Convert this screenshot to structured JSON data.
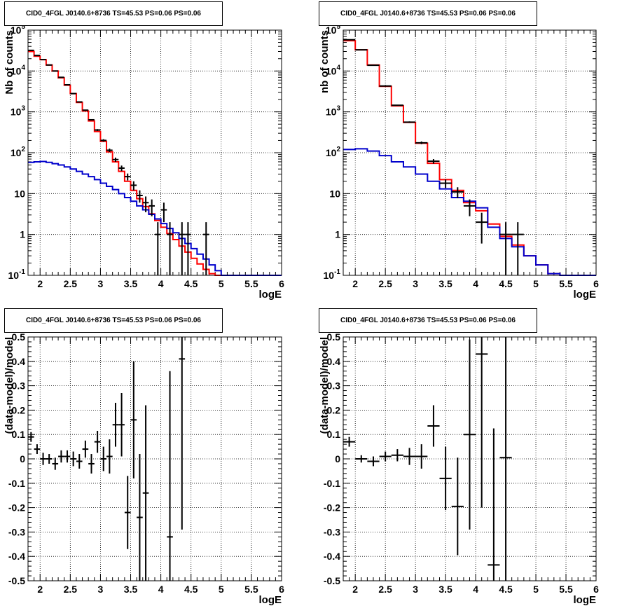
{
  "chart_data": [
    {
      "type": "line",
      "title": "CID0_4FGL J0140.6+8736 TS=45.53 PS=0.06 PS=0.06",
      "xlabel": "logE",
      "ylabel": "Nb of counts",
      "yscale": "log",
      "xlim": [
        1.8,
        6.0
      ],
      "ylim": [
        0.1,
        100000
      ],
      "grid": true,
      "x_ticks": [
        "2",
        "2.5",
        "3",
        "3.5",
        "4",
        "4.5",
        "5",
        "5.5",
        "6"
      ],
      "y_ticks": [
        "10^{-1}",
        "1",
        "10",
        "10^{2}",
        "10^{3}",
        "10^{4}",
        "10^{5}"
      ],
      "bin_edges": [
        1.8,
        1.9,
        2.0,
        2.1,
        2.2,
        2.3,
        2.4,
        2.5,
        2.6,
        2.7,
        2.8,
        2.9,
        3.0,
        3.1,
        3.2,
        3.3,
        3.4,
        3.5,
        3.6,
        3.7,
        3.8,
        3.9,
        4.0,
        4.1,
        4.2,
        4.3,
        4.4,
        4.5,
        4.6,
        4.7,
        4.8,
        4.9,
        5.0,
        5.1,
        5.2,
        5.3,
        5.4,
        5.5,
        5.6,
        5.7,
        5.8,
        5.9,
        6.0
      ],
      "series": [
        {
          "color": "#ff0000",
          "values": [
            30000,
            23000,
            19000,
            14000,
            10000,
            6800,
            4500,
            2800,
            1700,
            1050,
            600,
            330,
            190,
            105,
            60,
            35,
            20,
            12,
            7.5,
            4.8,
            3.2,
            2.2,
            1.5,
            1.05,
            0.75,
            0.52,
            0.37,
            0.26,
            0.19,
            0.14,
            0.11,
            0.1,
            0.1,
            0.1,
            0.1,
            0.1,
            0.1,
            0.1,
            0.1,
            0.1,
            0.1,
            0.1
          ]
        },
        {
          "color": "#0000cc",
          "values": [
            58,
            60,
            61,
            58,
            54,
            50,
            45,
            40,
            35,
            30,
            26,
            22,
            18,
            15,
            12.5,
            10,
            8,
            6.5,
            5,
            4,
            3.1,
            2.4,
            1.85,
            1.4,
            1.1,
            0.8,
            0.6,
            0.45,
            0.33,
            0.25,
            0.18,
            0.13,
            0.1,
            0.1,
            0.1,
            0.1,
            0.1,
            0.1,
            0.1,
            0.1,
            0.1,
            0.1
          ]
        }
      ],
      "data_points": {
        "x": [
          1.85,
          1.95,
          2.05,
          2.15,
          2.25,
          2.35,
          2.45,
          2.55,
          2.65,
          2.75,
          2.85,
          2.95,
          3.05,
          3.15,
          3.25,
          3.35,
          3.45,
          3.55,
          3.65,
          3.75,
          3.85,
          3.95,
          4.05,
          4.15,
          4.25,
          4.35,
          4.45,
          4.55,
          4.65,
          4.75
        ],
        "y": [
          32000,
          24000,
          19000,
          14000,
          10000,
          7000,
          4600,
          2800,
          1750,
          1100,
          640,
          360,
          200,
          115,
          68,
          42,
          26,
          16,
          9,
          6,
          5,
          1,
          4,
          1,
          0,
          1,
          1,
          0,
          0,
          1
        ],
        "yerr": [
          180,
          155,
          140,
          120,
          100,
          85,
          68,
          53,
          42,
          33,
          25,
          19,
          14,
          11,
          8,
          6.5,
          5,
          4,
          3,
          2.5,
          2.2,
          1,
          2,
          1,
          0,
          1,
          1,
          0,
          0,
          1
        ]
      }
    },
    {
      "type": "line",
      "title": "CID0_4FGL J0140.6+8736 TS=45.53 PS=0.06 PS=0.06",
      "xlabel": "logE",
      "ylabel": "nb of counts",
      "yscale": "log",
      "xlim": [
        1.8,
        6.0
      ],
      "ylim": [
        0.1,
        100000
      ],
      "grid": true,
      "x_ticks": [
        "2",
        "2.5",
        "3",
        "3.5",
        "4",
        "4.5",
        "5",
        "5.5",
        "6"
      ],
      "y_ticks": [
        "10^{-1}",
        "1",
        "10",
        "10^{2}",
        "10^{3}",
        "10^{4}",
        "10^{5}"
      ],
      "bin_edges": [
        1.8,
        2.0,
        2.2,
        2.4,
        2.6,
        2.8,
        3.0,
        3.2,
        3.4,
        3.6,
        3.8,
        4.0,
        4.2,
        4.4,
        4.6,
        4.8,
        5.0,
        5.2,
        5.4,
        5.6,
        5.8,
        6.0
      ],
      "series": [
        {
          "color": "#ff0000",
          "values": [
            55000,
            33000,
            14000,
            4200,
            1400,
            550,
            170,
            55,
            22,
            12,
            6,
            3.8,
            1.8,
            0.9,
            0.55,
            0.3,
            0.18,
            0.11,
            0.1,
            0.1,
            0.1
          ]
        },
        {
          "color": "#0000cc",
          "values": [
            120,
            125,
            110,
            85,
            60,
            45,
            30,
            20,
            13,
            8,
            6.5,
            4.5,
            1.5,
            0.8,
            0.5,
            0.3,
            0.18,
            0.11,
            0.1,
            0.1,
            0.1
          ]
        }
      ],
      "data_points": {
        "x": [
          1.9,
          2.1,
          2.3,
          2.5,
          2.7,
          2.9,
          3.1,
          3.3,
          3.5,
          3.7,
          3.9,
          4.1,
          4.3,
          4.5,
          4.7
        ],
        "y": [
          58000,
          33000,
          13800,
          4300,
          1450,
          560,
          175,
          62,
          18,
          11,
          5,
          2,
          0,
          1,
          1
        ],
        "yerr": [
          240,
          180,
          118,
          65,
          38,
          24,
          13,
          8,
          4.2,
          3.3,
          2.2,
          1.4,
          0,
          1,
          1
        ]
      }
    },
    {
      "type": "scatter",
      "title": "CID0_4FGL J0140.6+8736 TS=45.53 PS=0.06 PS=0.06",
      "xlabel": "logE",
      "ylabel": "(data-model)/model",
      "xlim": [
        1.8,
        6.0
      ],
      "ylim": [
        -0.5,
        0.5
      ],
      "grid": true,
      "x_ticks": [
        "2",
        "2.5",
        "3",
        "3.5",
        "4",
        "4.5",
        "5",
        "5.5",
        "6"
      ],
      "y_ticks": [
        "-0.5",
        "-0.4",
        "-0.3",
        "-0.2",
        "-0.1",
        "0",
        "0.1",
        "0.2",
        "0.3",
        "0.4",
        "0.5"
      ],
      "x": [
        1.85,
        1.95,
        2.05,
        2.15,
        2.25,
        2.35,
        2.45,
        2.55,
        2.65,
        2.75,
        2.85,
        2.95,
        3.05,
        3.15,
        3.25,
        3.35,
        3.45,
        3.55,
        3.65,
        3.75,
        4.15,
        4.35
      ],
      "y": [
        0.09,
        0.04,
        0.0,
        0.0,
        -0.02,
        0.01,
        0.01,
        0.0,
        -0.01,
        0.04,
        -0.02,
        0.07,
        0.0,
        0.01,
        0.14,
        0.14,
        -0.22,
        0.16,
        -0.24,
        -0.14,
        -0.32,
        0.41
      ],
      "yerr": [
        0.02,
        0.02,
        0.025,
        0.02,
        0.025,
        0.025,
        0.025,
        0.03,
        0.03,
        0.035,
        0.04,
        0.045,
        0.05,
        0.07,
        0.09,
        0.13,
        0.15,
        0.24,
        0.26,
        0.36,
        0.68,
        0.7
      ],
      "xerr": 0.05
    },
    {
      "type": "scatter",
      "title": "CID0_4FGL J0140.6+8736 TS=45.53 PS=0.06 PS=0.06",
      "xlabel": "logE",
      "ylabel": "(data-model)/model",
      "xlim": [
        1.8,
        6.0
      ],
      "ylim": [
        -0.5,
        0.5
      ],
      "grid": true,
      "x_ticks": [
        "2",
        "2.5",
        "3",
        "3.5",
        "4",
        "4.5",
        "5",
        "5.5",
        "6"
      ],
      "y_ticks": [
        "-0.5",
        "-0.4",
        "-0.3",
        "-0.2",
        "-0.1",
        "0",
        "0.1",
        "0.2",
        "0.3",
        "0.4",
        "0.5"
      ],
      "x": [
        1.9,
        2.1,
        2.3,
        2.5,
        2.7,
        2.9,
        3.1,
        3.3,
        3.5,
        3.7,
        3.9,
        4.1,
        4.3,
        4.5
      ],
      "y": [
        0.07,
        0.0,
        -0.01,
        0.01,
        0.015,
        0.01,
        0.01,
        0.135,
        -0.08,
        -0.195,
        0.1,
        0.43,
        -0.435,
        0.005
      ],
      "yerr": [
        0.02,
        0.015,
        0.02,
        0.02,
        0.025,
        0.035,
        0.05,
        0.085,
        0.13,
        0.2,
        0.39,
        0.63,
        0.56,
        0.95
      ],
      "xerr": 0.1
    }
  ]
}
